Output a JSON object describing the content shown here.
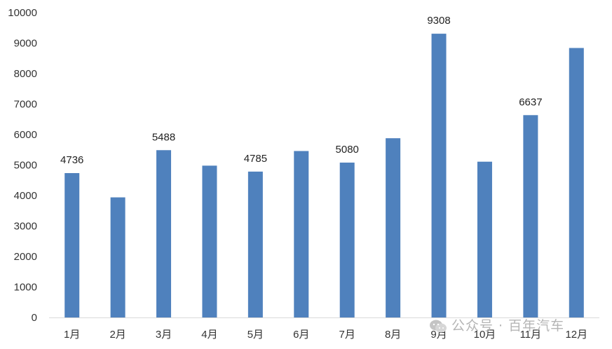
{
  "chart_data": {
    "type": "bar",
    "title": "",
    "xlabel": "",
    "ylabel": "",
    "categories": [
      "1月",
      "2月",
      "3月",
      "4月",
      "5月",
      "6月",
      "7月",
      "8月",
      "9月",
      "10月",
      "11月",
      "12月"
    ],
    "values": [
      4736,
      3940,
      5488,
      4980,
      4785,
      5460,
      5080,
      5880,
      9308,
      5110,
      6637,
      8840
    ],
    "data_labels": [
      "4736",
      "",
      "5488",
      "",
      "4785",
      "",
      "5080",
      "",
      "9308",
      "",
      "6637",
      ""
    ],
    "ylim": [
      0,
      10000
    ],
    "yticks": [
      0,
      1000,
      2000,
      3000,
      4000,
      5000,
      6000,
      7000,
      8000,
      9000,
      10000
    ],
    "grid": false,
    "legend": "none",
    "bar_color": "#4f81bd"
  },
  "watermark": {
    "text": "公众号 · 百年汽车",
    "icon": "wechat-icon"
  }
}
